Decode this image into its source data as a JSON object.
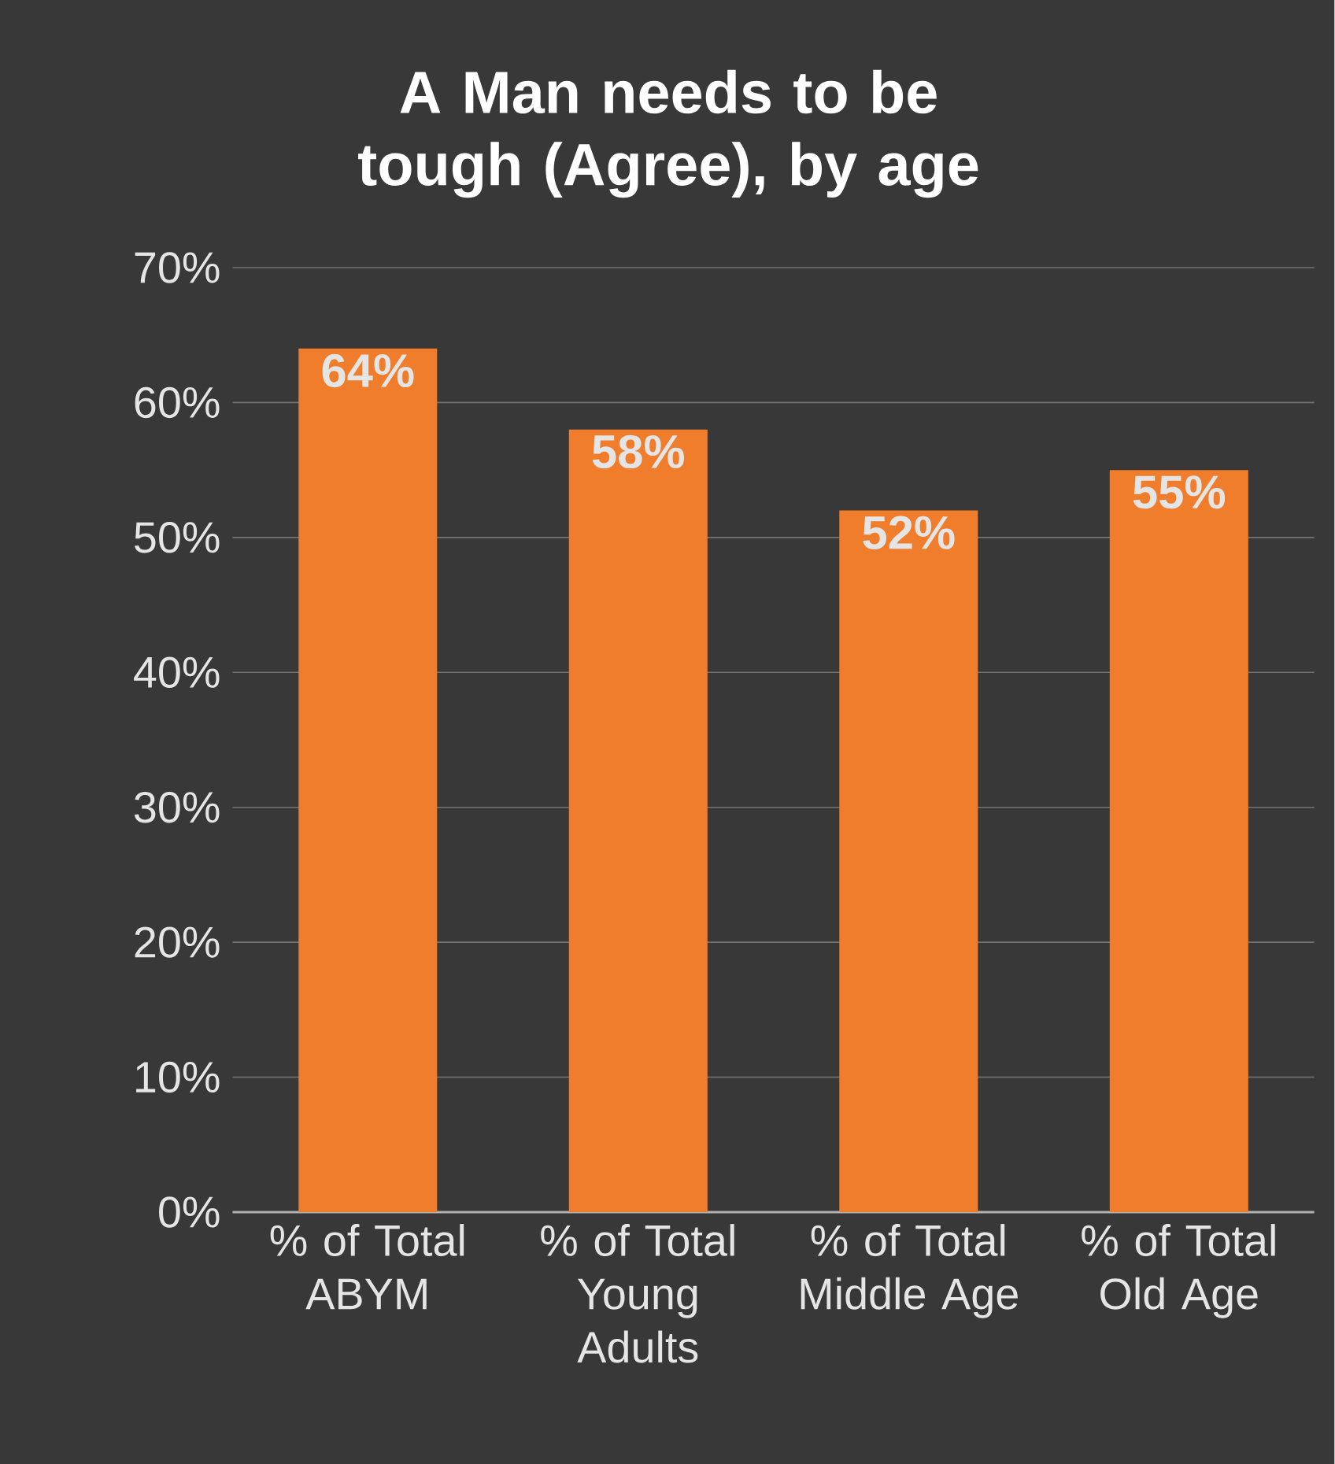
{
  "chart_data": {
    "type": "bar",
    "title": "A Man needs to be tough (Agree), by age",
    "categories": [
      "% of Total ABYM",
      "% of Total Young Adults",
      "% of Total Middle Age",
      "% of Total Old Age"
    ],
    "values": [
      64,
      58,
      52,
      55
    ],
    "value_labels": [
      "64%",
      "58%",
      "52%",
      "55%"
    ],
    "color": "#f07d2c",
    "ylim": [
      0,
      70
    ],
    "yticks": [
      {
        "value": 0,
        "label": "0%"
      },
      {
        "value": 10,
        "label": "10%"
      },
      {
        "value": 20,
        "label": "20%"
      },
      {
        "value": 30,
        "label": "30%"
      },
      {
        "value": 40,
        "label": "40%"
      },
      {
        "value": 50,
        "label": "50%"
      },
      {
        "value": 60,
        "label": "60%"
      },
      {
        "value": 70,
        "label": "70%"
      }
    ],
    "grid": "y"
  }
}
